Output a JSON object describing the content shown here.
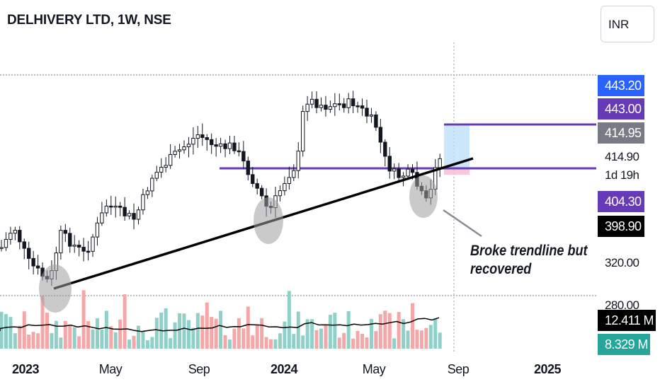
{
  "header": {
    "title": "DELHIVERY LTD, 1W, NSE",
    "currency": "INR"
  },
  "price_scale": {
    "ticks": [
      "320.00",
      "280.00"
    ],
    "labels": [
      {
        "text": "443.20",
        "color": "#2962ff"
      },
      {
        "text": "443.00",
        "color": "#673ab7"
      },
      {
        "text": "414.95",
        "color": "#787b86"
      },
      {
        "text": "414.90",
        "color": "transparent"
      },
      {
        "text": "1d 19h",
        "color": "transparent"
      },
      {
        "text": "404.30",
        "color": "#673ab7"
      },
      {
        "text": "398.90",
        "color": "#000000"
      },
      {
        "text": "12.411 M",
        "color": "#000000"
      },
      {
        "text": "8.329 M",
        "color": "#26a69a"
      }
    ]
  },
  "time_axis": {
    "labels": [
      {
        "text": "2023",
        "bold": true
      },
      {
        "text": "May",
        "bold": false
      },
      {
        "text": "Sep",
        "bold": false
      },
      {
        "text": "2024",
        "bold": true
      },
      {
        "text": "May",
        "bold": false
      },
      {
        "text": "Sep",
        "bold": false
      },
      {
        "text": "2025",
        "bold": true
      }
    ]
  },
  "annotation": {
    "line1": "Broke trendline but",
    "line2": "recovered"
  },
  "colors": {
    "up": "#131722",
    "down": "#131722",
    "volume_up": "#8fd1c9",
    "volume_down": "#f5a6a6",
    "horizontal_level": "#673ab7",
    "trendline": "#000000",
    "highlight_circle": "#9e9e9e",
    "target_box": "#bbdefb"
  },
  "chart_data": {
    "type": "candlestick",
    "symbol": "DELHIVERY LTD",
    "interval": "1W",
    "exchange": "NSE",
    "horizontal_levels": [
      443.0,
      404.3
    ],
    "last_price": 414.9,
    "volume_ma": "12.411 M",
    "volume_last": "8.329 M",
    "annotation": "Broke trendline but recovered"
  }
}
